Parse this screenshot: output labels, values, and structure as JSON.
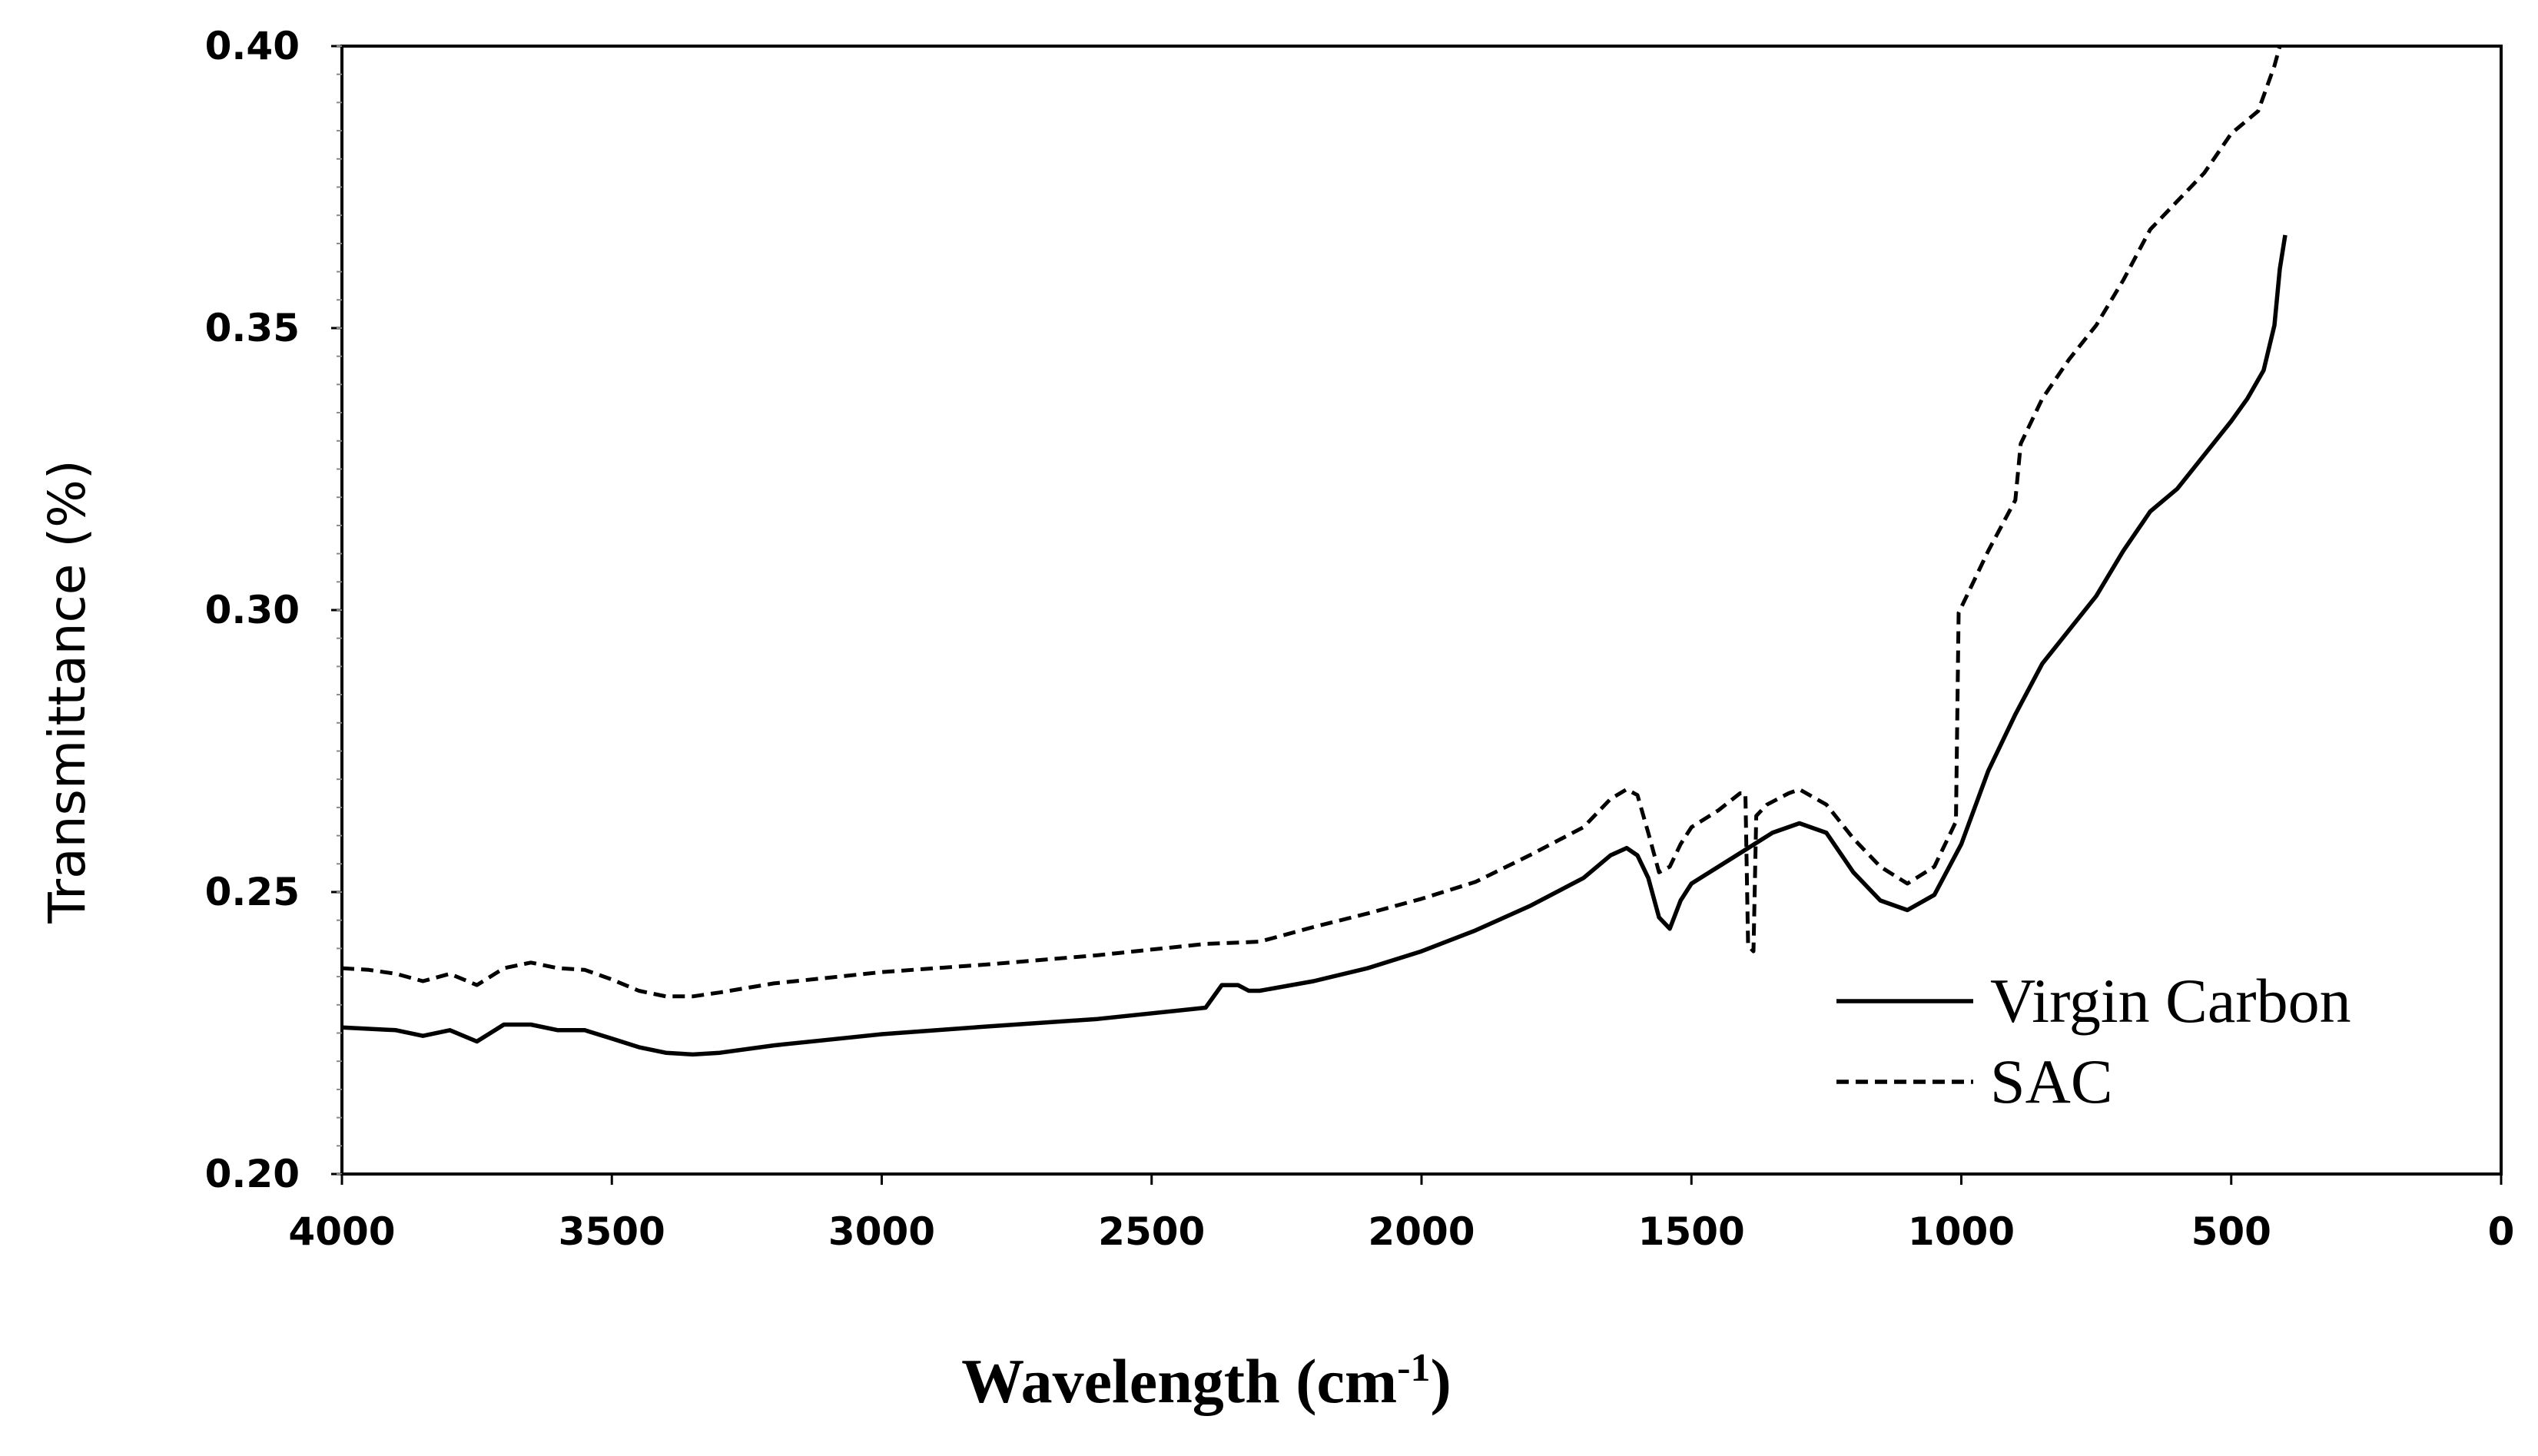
{
  "chart_data": {
    "type": "line",
    "title": "",
    "xlabel": "Wavelength (cm",
    "xlabel_superscript": "-1",
    "xlabel_suffix": ")",
    "ylabel": "Transmittance (%)",
    "xlim": [
      4000,
      0
    ],
    "ylim": [
      0.2,
      0.4
    ],
    "x_ticks": [
      4000,
      3500,
      3000,
      2500,
      2000,
      1500,
      1000,
      500,
      0
    ],
    "x_tick_labels": [
      "4000",
      "3500",
      "3000",
      "2500",
      "2000",
      "1500",
      "1000",
      "500",
      "0"
    ],
    "y_ticks": [
      0.2,
      0.25,
      0.3,
      0.35,
      0.4
    ],
    "y_tick_labels": [
      "0.20",
      "0.25",
      "0.30",
      "0.35",
      "0.40"
    ],
    "grid": false,
    "legend_position": "bottom-right",
    "series": [
      {
        "name": "Virgin Carbon",
        "style": "solid",
        "color": "#000000",
        "points": [
          [
            4000,
            0.226
          ],
          [
            3900,
            0.2255
          ],
          [
            3850,
            0.2245
          ],
          [
            3800,
            0.2255
          ],
          [
            3750,
            0.2235
          ],
          [
            3700,
            0.2265
          ],
          [
            3650,
            0.2265
          ],
          [
            3600,
            0.2255
          ],
          [
            3550,
            0.2255
          ],
          [
            3500,
            0.224
          ],
          [
            3450,
            0.2225
          ],
          [
            3400,
            0.2215
          ],
          [
            3350,
            0.2212
          ],
          [
            3300,
            0.2215
          ],
          [
            3200,
            0.2228
          ],
          [
            3100,
            0.2238
          ],
          [
            3000,
            0.2248
          ],
          [
            2800,
            0.2262
          ],
          [
            2600,
            0.2275
          ],
          [
            2400,
            0.2295
          ],
          [
            2370,
            0.2335
          ],
          [
            2340,
            0.2335
          ],
          [
            2320,
            0.2325
          ],
          [
            2300,
            0.2325
          ],
          [
            2200,
            0.2342
          ],
          [
            2100,
            0.2365
          ],
          [
            2000,
            0.2395
          ],
          [
            1900,
            0.2432
          ],
          [
            1800,
            0.2475
          ],
          [
            1700,
            0.2525
          ],
          [
            1650,
            0.2565
          ],
          [
            1620,
            0.2578
          ],
          [
            1600,
            0.2565
          ],
          [
            1580,
            0.2525
          ],
          [
            1560,
            0.2455
          ],
          [
            1540,
            0.2435
          ],
          [
            1520,
            0.2485
          ],
          [
            1500,
            0.2515
          ],
          [
            1450,
            0.2545
          ],
          [
            1400,
            0.2575
          ],
          [
            1350,
            0.2605
          ],
          [
            1300,
            0.2622
          ],
          [
            1250,
            0.2605
          ],
          [
            1200,
            0.2535
          ],
          [
            1150,
            0.2485
          ],
          [
            1100,
            0.2468
          ],
          [
            1050,
            0.2495
          ],
          [
            1000,
            0.2585
          ],
          [
            950,
            0.2715
          ],
          [
            900,
            0.2815
          ],
          [
            850,
            0.2905
          ],
          [
            800,
            0.2965
          ],
          [
            750,
            0.3025
          ],
          [
            700,
            0.3105
          ],
          [
            650,
            0.3175
          ],
          [
            600,
            0.3215
          ],
          [
            550,
            0.3275
          ],
          [
            500,
            0.3335
          ],
          [
            470,
            0.3375
          ],
          [
            440,
            0.3425
          ],
          [
            420,
            0.3505
          ],
          [
            410,
            0.3605
          ],
          [
            400,
            0.3665
          ]
        ]
      },
      {
        "name": "SAC",
        "style": "dashed",
        "color": "#000000",
        "points": [
          [
            4000,
            0.2365
          ],
          [
            3950,
            0.2362
          ],
          [
            3900,
            0.2355
          ],
          [
            3850,
            0.2342
          ],
          [
            3800,
            0.2355
          ],
          [
            3750,
            0.2335
          ],
          [
            3700,
            0.2365
          ],
          [
            3650,
            0.2375
          ],
          [
            3600,
            0.2365
          ],
          [
            3550,
            0.2362
          ],
          [
            3500,
            0.2345
          ],
          [
            3450,
            0.2325
          ],
          [
            3400,
            0.2315
          ],
          [
            3350,
            0.2315
          ],
          [
            3300,
            0.2322
          ],
          [
            3200,
            0.2338
          ],
          [
            3100,
            0.2348
          ],
          [
            3000,
            0.2358
          ],
          [
            2800,
            0.2372
          ],
          [
            2600,
            0.2388
          ],
          [
            2400,
            0.2408
          ],
          [
            2300,
            0.2412
          ],
          [
            2200,
            0.2438
          ],
          [
            2100,
            0.2462
          ],
          [
            2000,
            0.2488
          ],
          [
            1900,
            0.2518
          ],
          [
            1800,
            0.2565
          ],
          [
            1700,
            0.2615
          ],
          [
            1650,
            0.2665
          ],
          [
            1620,
            0.2682
          ],
          [
            1600,
            0.2672
          ],
          [
            1580,
            0.2605
          ],
          [
            1560,
            0.2535
          ],
          [
            1540,
            0.2545
          ],
          [
            1520,
            0.2585
          ],
          [
            1500,
            0.2615
          ],
          [
            1450,
            0.2645
          ],
          [
            1410,
            0.2675
          ],
          [
            1400,
            0.2675
          ],
          [
            1395,
            0.2405
          ],
          [
            1385,
            0.2395
          ],
          [
            1380,
            0.2635
          ],
          [
            1360,
            0.2655
          ],
          [
            1320,
            0.2675
          ],
          [
            1300,
            0.2682
          ],
          [
            1250,
            0.2655
          ],
          [
            1200,
            0.2595
          ],
          [
            1150,
            0.2545
          ],
          [
            1100,
            0.2515
          ],
          [
            1050,
            0.2545
          ],
          [
            1010,
            0.2625
          ],
          [
            1005,
            0.2995
          ],
          [
            950,
            0.3105
          ],
          [
            900,
            0.3195
          ],
          [
            890,
            0.3295
          ],
          [
            850,
            0.3375
          ],
          [
            800,
            0.3445
          ],
          [
            750,
            0.3505
          ],
          [
            700,
            0.3585
          ],
          [
            650,
            0.3675
          ],
          [
            600,
            0.3725
          ],
          [
            550,
            0.3775
          ],
          [
            500,
            0.3845
          ],
          [
            450,
            0.3885
          ],
          [
            420,
            0.3965
          ],
          [
            410,
            0.4
          ]
        ]
      }
    ],
    "legend": [
      {
        "label": "Virgin Carbon",
        "style": "solid"
      },
      {
        "label": "SAC",
        "style": "dashed"
      }
    ]
  }
}
